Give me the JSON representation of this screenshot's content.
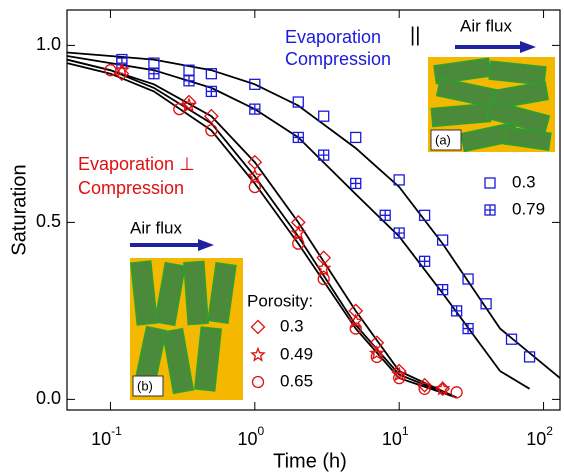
{
  "chart_data": {
    "type": "scatter",
    "x_label": "Time (h)",
    "y_label": "Saturation",
    "xscale": "log",
    "xlim": [
      0.05,
      130
    ],
    "ylim": [
      -0.03,
      1.1
    ],
    "xticks": [
      {
        "value": 0.1,
        "label": "10",
        "exponent": "-1"
      },
      {
        "value": 1,
        "label": "10",
        "exponent": "0"
      },
      {
        "value": 10,
        "label": "10",
        "exponent": "1"
      },
      {
        "value": 100,
        "label": "10",
        "exponent": "2"
      }
    ],
    "yticks": [
      {
        "value": 0,
        "label": "0.0"
      },
      0.5,
      {
        "value": 1,
        "label": "1.0"
      }
    ],
    "legend_title": "Porosity:",
    "annotations": [
      "Evaporation",
      "||",
      "Compression",
      "Evaporation ⊥",
      "Compression",
      "Air flux",
      "Air flux",
      "(a)",
      "(b)"
    ],
    "series": [
      {
        "name": "0.3",
        "color": "#1a1adc",
        "marker": "square",
        "x": [
          0.12,
          0.2,
          0.35,
          0.5,
          1,
          2,
          3,
          5,
          10,
          15,
          20,
          30,
          40,
          60,
          80
        ],
        "values": [
          0.96,
          0.95,
          0.93,
          0.92,
          0.89,
          0.84,
          0.8,
          0.74,
          0.62,
          0.52,
          0.45,
          0.34,
          0.27,
          0.17,
          0.12
        ]
      },
      {
        "name": "0.79",
        "color": "#1a1adc",
        "marker": "square-plus",
        "x": [
          0.12,
          0.2,
          0.35,
          0.5,
          1,
          2,
          3,
          5,
          8,
          10,
          15,
          20,
          25,
          30
        ],
        "values": [
          0.95,
          0.92,
          0.9,
          0.87,
          0.82,
          0.74,
          0.69,
          0.61,
          0.52,
          0.47,
          0.39,
          0.31,
          0.25,
          0.2
        ]
      },
      {
        "name": "0.3",
        "color": "#e01010",
        "marker": "diamond",
        "x": [
          0.12,
          0.35,
          0.5,
          1,
          2,
          3,
          5,
          7,
          10,
          15,
          20
        ],
        "values": [
          0.92,
          0.84,
          0.8,
          0.67,
          0.5,
          0.4,
          0.25,
          0.16,
          0.08,
          0.04,
          0.03
        ]
      },
      {
        "name": "0.49",
        "color": "#e01010",
        "marker": "star",
        "x": [
          0.12,
          0.35,
          1,
          2,
          3,
          5,
          7,
          10,
          20
        ],
        "values": [
          0.93,
          0.83,
          0.63,
          0.47,
          0.37,
          0.22,
          0.13,
          0.07,
          0.03
        ]
      },
      {
        "name": "0.65",
        "color": "#e01010",
        "marker": "circle",
        "x": [
          0.1,
          0.3,
          0.5,
          1,
          2,
          3,
          5,
          7,
          10,
          15,
          25
        ],
        "values": [
          0.93,
          0.82,
          0.76,
          0.6,
          0.44,
          0.34,
          0.2,
          0.12,
          0.06,
          0.03,
          0.02
        ]
      }
    ],
    "fits": [
      {
        "color": "#000000",
        "x": [
          0.05,
          0.1,
          0.2,
          0.5,
          1,
          2,
          5,
          10,
          20,
          50,
          130
        ],
        "values": [
          0.98,
          0.97,
          0.96,
          0.93,
          0.89,
          0.83,
          0.71,
          0.6,
          0.44,
          0.2,
          0.06
        ]
      },
      {
        "color": "#000000",
        "x": [
          0.05,
          0.1,
          0.2,
          0.5,
          1,
          2,
          5,
          10,
          20,
          50,
          80
        ],
        "values": [
          0.97,
          0.95,
          0.93,
          0.88,
          0.82,
          0.74,
          0.58,
          0.46,
          0.3,
          0.08,
          0.03
        ]
      },
      {
        "color": "#000000",
        "x": [
          0.05,
          0.1,
          0.2,
          0.5,
          1,
          2,
          5,
          10,
          25
        ],
        "values": [
          0.96,
          0.93,
          0.89,
          0.8,
          0.67,
          0.5,
          0.25,
          0.08,
          0.005
        ]
      },
      {
        "color": "#000000",
        "x": [
          0.05,
          0.1,
          0.2,
          0.5,
          1,
          2,
          5,
          10,
          25
        ],
        "values": [
          0.96,
          0.93,
          0.88,
          0.78,
          0.63,
          0.46,
          0.21,
          0.07,
          0.005
        ]
      },
      {
        "color": "#000000",
        "x": [
          0.05,
          0.1,
          0.2,
          0.5,
          1,
          2,
          5,
          10,
          25
        ],
        "values": [
          0.95,
          0.92,
          0.87,
          0.76,
          0.61,
          0.44,
          0.2,
          0.06,
          0.005
        ]
      }
    ]
  }
}
